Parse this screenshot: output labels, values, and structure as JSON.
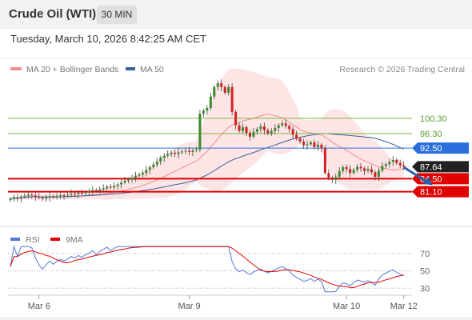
{
  "header": {
    "instrument": "Crude Oil (WTI)",
    "interval": "30 MIN",
    "datetime": "Tuesday, March 10, 2026 8:42:25 AM CET"
  },
  "chart_data": [
    {
      "type": "line",
      "panel": "price",
      "legend": [
        {
          "name": "MA 20 + Bollinger Bands",
          "color": "#f28c8c"
        },
        {
          "name": "MA 50",
          "color": "#3a5f9a"
        }
      ],
      "credit": "Research © 2026 Trading Central",
      "ylim": [
        72,
        116
      ],
      "x_ticks": [
        {
          "index": 8,
          "label": "Mar 6"
        },
        {
          "index": 50,
          "label": "Mar 9"
        },
        {
          "index": 94,
          "label": "Mar 10"
        },
        {
          "index": 110,
          "label": "Mar 12"
        }
      ],
      "levels": [
        {
          "value": 100.3,
          "label": "100.30",
          "color": "#7ab648",
          "kind": "resistance"
        },
        {
          "value": 96.3,
          "label": "96.30",
          "color": "#7ab648",
          "kind": "resistance"
        },
        {
          "value": 92.5,
          "label": "92.50",
          "color": "#2a6fdb",
          "kind": "pivot"
        },
        {
          "value": 84.5,
          "label": "84.50",
          "color": "#e00000",
          "kind": "support"
        },
        {
          "value": 81.1,
          "label": "81.10",
          "color": "#e00000",
          "kind": "support"
        }
      ],
      "last_price": {
        "value": 87.64,
        "label": "87.64"
      },
      "projection": {
        "from": [
          110,
          87.5
        ],
        "to": [
          118,
          82.8
        ]
      },
      "ohlc_close": [
        79.2,
        79.6,
        79.4,
        79.8,
        80.0,
        80.3,
        80.1,
        79.8,
        79.5,
        79.3,
        79.6,
        79.9,
        79.7,
        80.0,
        80.2,
        80.1,
        80.3,
        80.6,
        80.5,
        80.8,
        80.7,
        81.0,
        81.2,
        81.5,
        81.3,
        81.7,
        82.0,
        82.4,
        82.2,
        82.6,
        83.0,
        83.5,
        84.0,
        84.3,
        84.8,
        85.3,
        85.6,
        86.0,
        86.8,
        87.5,
        88.2,
        89.0,
        90.0,
        90.5,
        90.9,
        91.3,
        91.0,
        91.4,
        91.6,
        91.8,
        91.5,
        91.9,
        92.1,
        101.5,
        102.3,
        103.0,
        106.0,
        108.5,
        109.5,
        108.5,
        107.0,
        108.5,
        102.0,
        98.5,
        97.0,
        98.0,
        96.5,
        95.5,
        96.8,
        97.5,
        98.2,
        97.2,
        96.4,
        97.0,
        97.8,
        98.5,
        99.0,
        98.3,
        97.5,
        96.0,
        95.0,
        94.2,
        93.2,
        93.5,
        94.0,
        92.8,
        93.4,
        92.5,
        86.0,
        84.8,
        84.2,
        85.0,
        86.5,
        87.5,
        87.0,
        86.0,
        86.8,
        87.6,
        87.2,
        86.5,
        87.0,
        86.2,
        85.0,
        86.6,
        87.8,
        88.3,
        88.9,
        89.4,
        88.6,
        88.0,
        87.64
      ]
    },
    {
      "type": "line",
      "panel": "rsi",
      "legend": [
        {
          "name": "RSI",
          "color": "#5577dd"
        },
        {
          "name": "9MA",
          "color": "#e00000"
        }
      ],
      "ylim": [
        22,
        80
      ],
      "levels": [
        {
          "value": 70,
          "label": "70"
        },
        {
          "value": 50,
          "label": "50"
        },
        {
          "value": 30,
          "label": "30"
        }
      ]
    }
  ]
}
